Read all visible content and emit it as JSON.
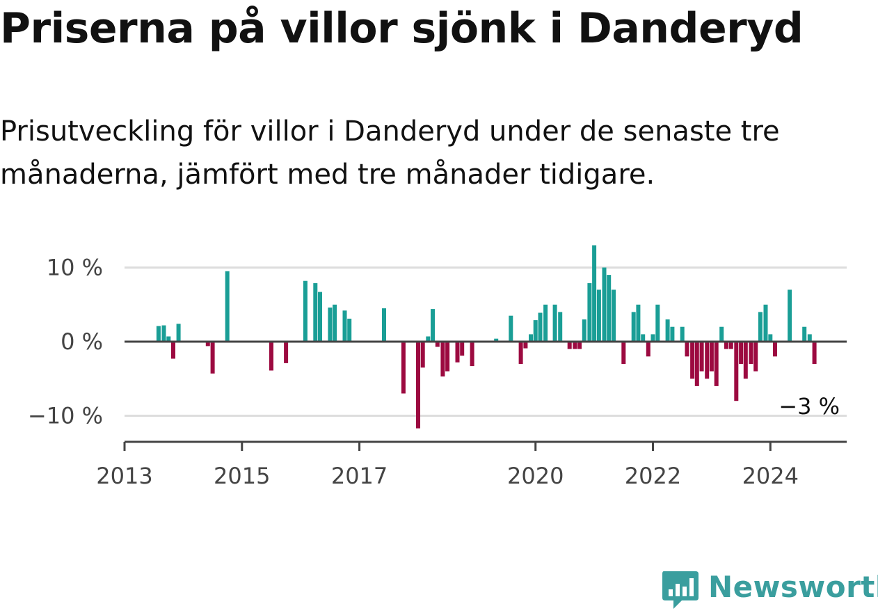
{
  "header": {
    "title": "Priserna på villor sjönk i Danderyd",
    "subtitle": "Prisutveckling för villor i Danderyd under de senaste tre månaderna, jämfört med tre månader tidigare."
  },
  "brand": {
    "name": "Newsworthy"
  },
  "colors": {
    "positive": "#1a9e96",
    "negative": "#9c0a40",
    "grid": "#dddddd",
    "axis": "#444444",
    "brand": "#3a9e9e"
  },
  "chart_data": {
    "type": "bar",
    "title": "Priserna på villor sjönk i Danderyd",
    "subtitle": "Prisutveckling för villor i Danderyd under de senaste tre månaderna, jämfört med tre månader tidigare.",
    "unit": "%",
    "xlabel": "",
    "ylabel": "",
    "ylim": [
      -13,
      13
    ],
    "yticks": [
      {
        "value": 10,
        "label": "10 %"
      },
      {
        "value": 0,
        "label": "0 %"
      },
      {
        "value": -10,
        "label": "−10 %"
      }
    ],
    "xticks": [
      {
        "value": 2013,
        "label": "2013"
      },
      {
        "value": 2015,
        "label": "2015"
      },
      {
        "value": 2017,
        "label": "2017"
      },
      {
        "value": 2020,
        "label": "2020"
      },
      {
        "value": 2022,
        "label": "2022"
      },
      {
        "value": 2024,
        "label": "2024"
      }
    ],
    "xlim": [
      2013.0,
      2025.3
    ],
    "grid": true,
    "last_value_label": "−3 %",
    "series": [
      {
        "name": "Prisutveckling",
        "points": [
          {
            "t": 2013.58,
            "v": 2.1
          },
          {
            "t": 2013.67,
            "v": 2.2
          },
          {
            "t": 2013.75,
            "v": 0.7
          },
          {
            "t": 2013.83,
            "v": -2.3
          },
          {
            "t": 2013.92,
            "v": 2.4
          },
          {
            "t": 2014.42,
            "v": -0.6
          },
          {
            "t": 2014.5,
            "v": -4.3
          },
          {
            "t": 2014.75,
            "v": 9.5
          },
          {
            "t": 2015.5,
            "v": -3.9
          },
          {
            "t": 2015.75,
            "v": -2.9
          },
          {
            "t": 2016.08,
            "v": 8.2
          },
          {
            "t": 2016.25,
            "v": 7.9
          },
          {
            "t": 2016.33,
            "v": 6.7
          },
          {
            "t": 2016.5,
            "v": 4.6
          },
          {
            "t": 2016.58,
            "v": 5.0
          },
          {
            "t": 2016.75,
            "v": 4.2
          },
          {
            "t": 2016.83,
            "v": 3.1
          },
          {
            "t": 2017.42,
            "v": 4.5
          },
          {
            "t": 2017.75,
            "v": -7.0
          },
          {
            "t": 2018.0,
            "v": -11.7
          },
          {
            "t": 2018.08,
            "v": -3.5
          },
          {
            "t": 2018.17,
            "v": 0.7
          },
          {
            "t": 2018.25,
            "v": 4.4
          },
          {
            "t": 2018.33,
            "v": -0.7
          },
          {
            "t": 2018.42,
            "v": -4.7
          },
          {
            "t": 2018.5,
            "v": -4.0
          },
          {
            "t": 2018.67,
            "v": -2.8
          },
          {
            "t": 2018.75,
            "v": -1.9
          },
          {
            "t": 2018.92,
            "v": -3.3
          },
          {
            "t": 2019.33,
            "v": 0.4
          },
          {
            "t": 2019.58,
            "v": 3.5
          },
          {
            "t": 2019.75,
            "v": -3.0
          },
          {
            "t": 2019.83,
            "v": -0.9
          },
          {
            "t": 2019.92,
            "v": 1.0
          },
          {
            "t": 2020.0,
            "v": 2.9
          },
          {
            "t": 2020.08,
            "v": 3.9
          },
          {
            "t": 2020.17,
            "v": 5.0
          },
          {
            "t": 2020.33,
            "v": 5.0
          },
          {
            "t": 2020.42,
            "v": 4.0
          },
          {
            "t": 2020.58,
            "v": -1.0
          },
          {
            "t": 2020.67,
            "v": -1.0
          },
          {
            "t": 2020.75,
            "v": -1.0
          },
          {
            "t": 2020.83,
            "v": 3.0
          },
          {
            "t": 2020.92,
            "v": 7.9
          },
          {
            "t": 2021.0,
            "v": 13.0
          },
          {
            "t": 2021.08,
            "v": 7.0
          },
          {
            "t": 2021.17,
            "v": 10.0
          },
          {
            "t": 2021.25,
            "v": 9.0
          },
          {
            "t": 2021.33,
            "v": 7.0
          },
          {
            "t": 2021.5,
            "v": -3.0
          },
          {
            "t": 2021.67,
            "v": 4.0
          },
          {
            "t": 2021.75,
            "v": 5.0
          },
          {
            "t": 2021.83,
            "v": 1.0
          },
          {
            "t": 2021.92,
            "v": -2.0
          },
          {
            "t": 2022.0,
            "v": 1.0
          },
          {
            "t": 2022.08,
            "v": 5.0
          },
          {
            "t": 2022.25,
            "v": 3.0
          },
          {
            "t": 2022.33,
            "v": 2.0
          },
          {
            "t": 2022.5,
            "v": 2.0
          },
          {
            "t": 2022.58,
            "v": -2.0
          },
          {
            "t": 2022.67,
            "v": -5.0
          },
          {
            "t": 2022.75,
            "v": -6.0
          },
          {
            "t": 2022.83,
            "v": -4.0
          },
          {
            "t": 2022.92,
            "v": -5.0
          },
          {
            "t": 2023.0,
            "v": -4.0
          },
          {
            "t": 2023.08,
            "v": -6.0
          },
          {
            "t": 2023.17,
            "v": 2.0
          },
          {
            "t": 2023.25,
            "v": -1.0
          },
          {
            "t": 2023.33,
            "v": -1.0
          },
          {
            "t": 2023.42,
            "v": -8.0
          },
          {
            "t": 2023.5,
            "v": -3.0
          },
          {
            "t": 2023.58,
            "v": -5.0
          },
          {
            "t": 2023.67,
            "v": -3.0
          },
          {
            "t": 2023.75,
            "v": -4.0
          },
          {
            "t": 2023.83,
            "v": 4.0
          },
          {
            "t": 2023.92,
            "v": 5.0
          },
          {
            "t": 2024.0,
            "v": 1.0
          },
          {
            "t": 2024.08,
            "v": -2.0
          },
          {
            "t": 2024.33,
            "v": 7.0
          },
          {
            "t": 2024.58,
            "v": 2.0
          },
          {
            "t": 2024.67,
            "v": 1.0
          },
          {
            "t": 2024.75,
            "v": -3.0
          }
        ]
      }
    ]
  }
}
